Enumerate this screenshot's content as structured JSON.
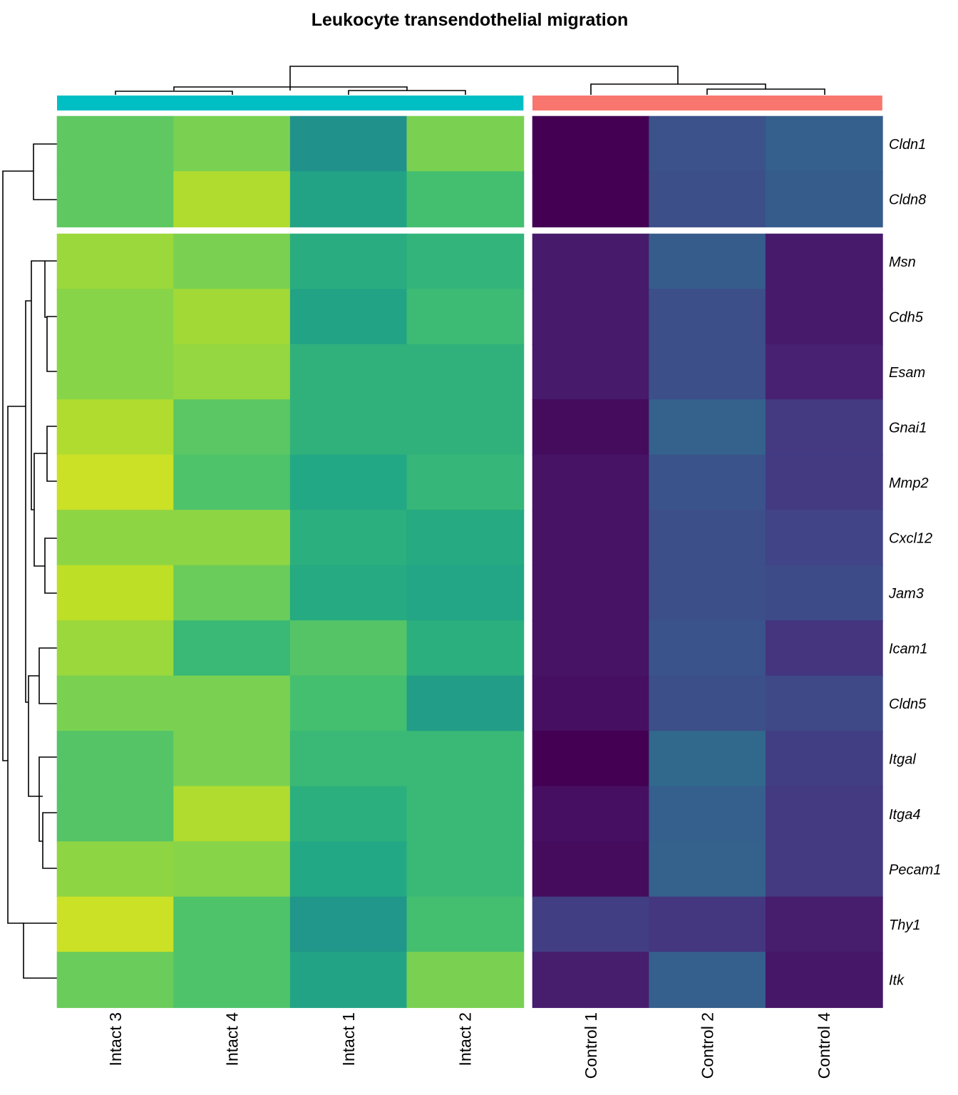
{
  "chart_data": {
    "type": "heatmap",
    "title": "Leukocyte transendothelial migration",
    "columns": [
      "Intact 3",
      "Intact 4",
      "Intact 1",
      "Intact 2",
      "Control 1",
      "Control 2",
      "Control 4"
    ],
    "column_groups": [
      {
        "columns": [
          "Intact 3",
          "Intact 4",
          "Intact 1",
          "Intact 2"
        ],
        "color": "#00BFC4"
      },
      {
        "columns": [
          "Control 1",
          "Control 2",
          "Control 4"
        ],
        "color": "#F8766D"
      }
    ],
    "rows": [
      "Cldn1",
      "Cldn8",
      "Msn",
      "Cdh5",
      "Esam",
      "Gnai1",
      "Mmp2",
      "Cxcl12",
      "Jam3",
      "Icam1",
      "Cldn5",
      "Itgal",
      "Itga4",
      "Pecam1",
      "Thy1",
      "Itk"
    ],
    "row_groups": [
      {
        "rows": [
          "Cldn1",
          "Cldn8"
        ]
      },
      {
        "rows": [
          "Msn",
          "Cdh5",
          "Esam",
          "Gnai1",
          "Mmp2",
          "Cxcl12",
          "Jam3",
          "Icam1",
          "Cldn5",
          "Itgal",
          "Itga4",
          "Pecam1",
          "Thy1",
          "Itk"
        ]
      }
    ],
    "colorscale": "viridis",
    "values": [
      [
        0.75,
        0.8,
        0.5,
        0.8,
        0.0,
        0.25,
        0.3
      ],
      [
        0.75,
        0.88,
        0.58,
        0.7,
        0.0,
        0.24,
        0.29
      ],
      [
        0.85,
        0.8,
        0.62,
        0.65,
        0.07,
        0.29,
        0.07
      ],
      [
        0.82,
        0.86,
        0.58,
        0.68,
        0.07,
        0.24,
        0.07
      ],
      [
        0.82,
        0.84,
        0.64,
        0.64,
        0.07,
        0.24,
        0.09
      ],
      [
        0.88,
        0.74,
        0.64,
        0.64,
        0.03,
        0.31,
        0.17
      ],
      [
        0.92,
        0.72,
        0.6,
        0.66,
        0.05,
        0.26,
        0.17
      ],
      [
        0.83,
        0.83,
        0.63,
        0.61,
        0.05,
        0.24,
        0.2
      ],
      [
        0.9,
        0.77,
        0.61,
        0.59,
        0.05,
        0.24,
        0.23
      ],
      [
        0.85,
        0.67,
        0.73,
        0.63,
        0.05,
        0.26,
        0.15
      ],
      [
        0.8,
        0.8,
        0.7,
        0.55,
        0.04,
        0.24,
        0.22
      ],
      [
        0.73,
        0.8,
        0.67,
        0.67,
        0.0,
        0.34,
        0.18
      ],
      [
        0.73,
        0.88,
        0.63,
        0.67,
        0.04,
        0.3,
        0.17
      ],
      [
        0.83,
        0.82,
        0.6,
        0.67,
        0.03,
        0.31,
        0.17
      ],
      [
        0.92,
        0.72,
        0.52,
        0.7,
        0.18,
        0.16,
        0.08
      ],
      [
        0.77,
        0.72,
        0.58,
        0.8,
        0.08,
        0.3,
        0.06
      ]
    ]
  }
}
